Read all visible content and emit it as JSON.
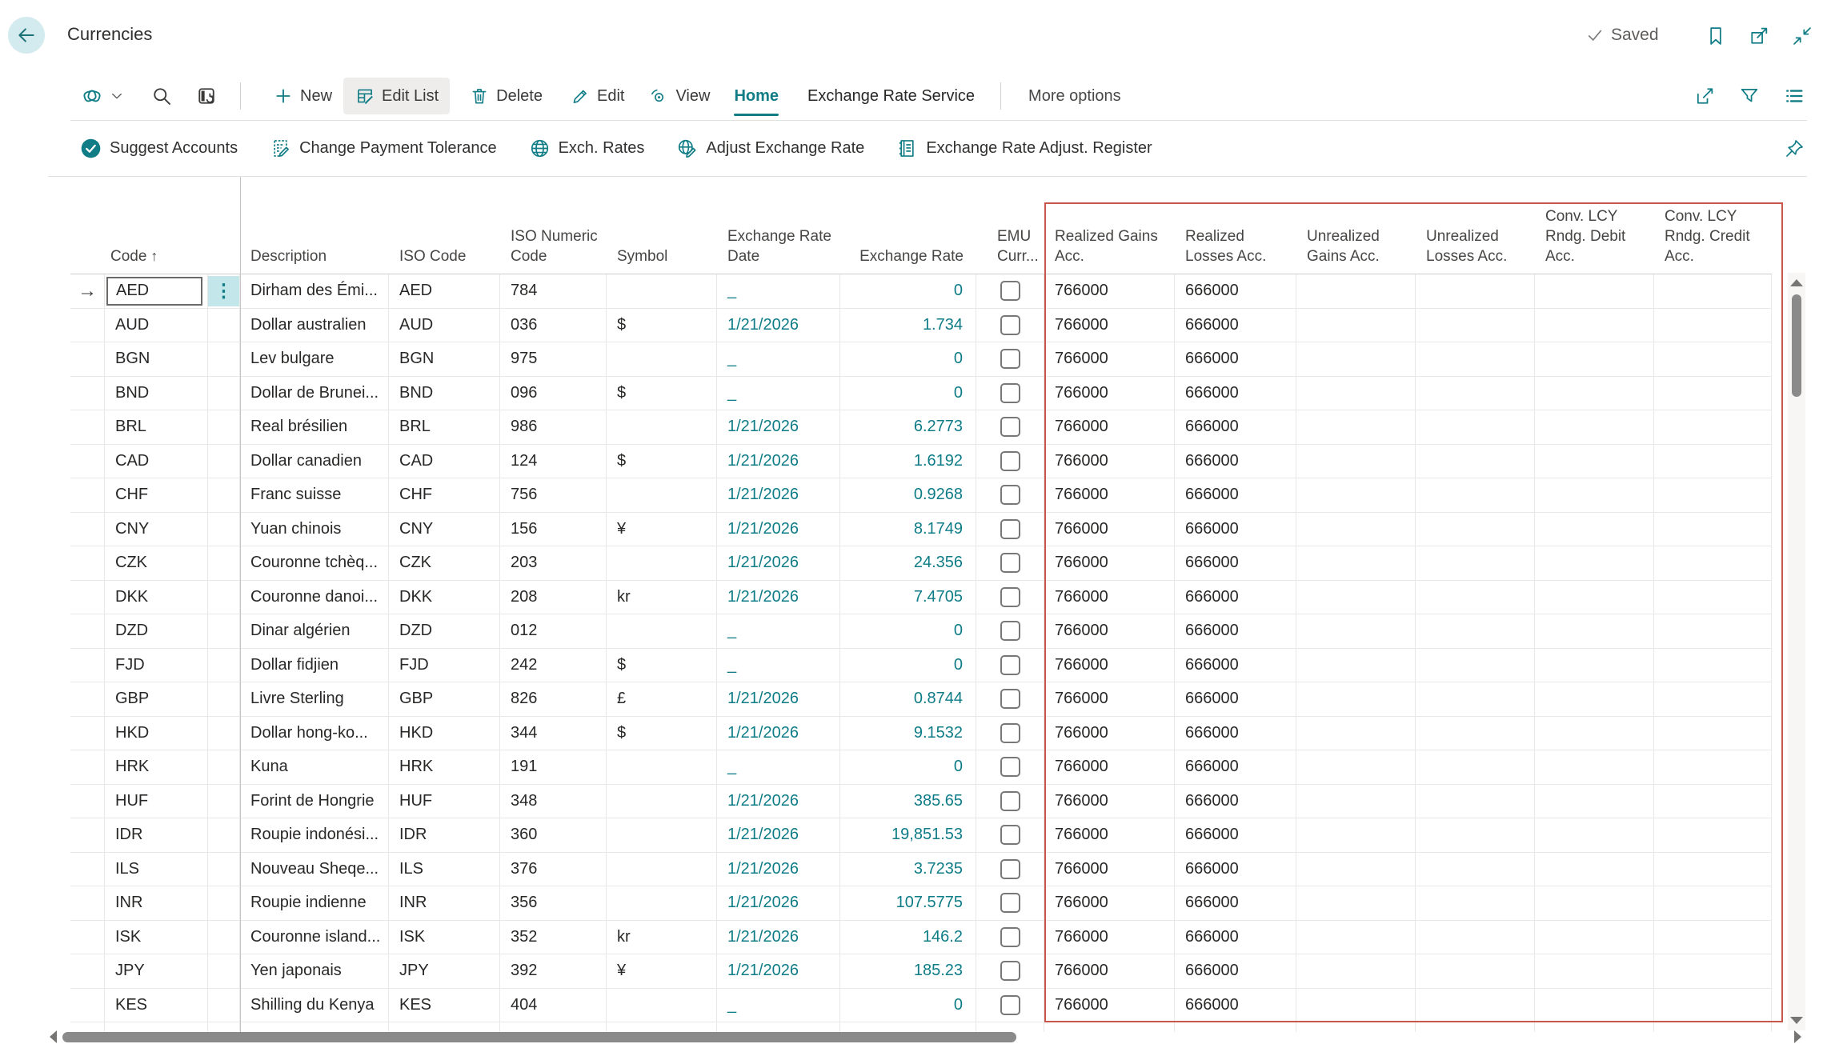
{
  "page": {
    "title": "Currencies",
    "saved": "Saved"
  },
  "ribbon": {
    "new": "New",
    "edit_list": "Edit List",
    "delete": "Delete",
    "edit": "Edit",
    "view": "View",
    "home_tab": "Home",
    "exchange_rate_service_tab": "Exchange Rate Service",
    "more_options": "More options"
  },
  "actions": {
    "suggest_accounts": "Suggest Accounts",
    "change_payment_tolerance": "Change Payment Tolerance",
    "exch_rates": "Exch. Rates",
    "adjust_exchange_rate": "Adjust Exchange Rate",
    "exchange_rate_adjust_register": "Exchange Rate Adjust. Register"
  },
  "table": {
    "columns": [
      {
        "key": "sel",
        "lines": []
      },
      {
        "key": "code",
        "lines": [
          "Code"
        ],
        "sort": "asc"
      },
      {
        "key": "opts",
        "lines": []
      },
      {
        "key": "description",
        "lines": [
          "Description"
        ]
      },
      {
        "key": "iso_code",
        "lines": [
          "ISO Code"
        ]
      },
      {
        "key": "iso_numeric",
        "lines": [
          "ISO Numeric",
          "Code"
        ]
      },
      {
        "key": "symbol",
        "lines": [
          "Symbol"
        ]
      },
      {
        "key": "rate_date",
        "lines": [
          "Exchange Rate",
          "Date"
        ]
      },
      {
        "key": "rate",
        "lines": [
          "Exchange Rate"
        ],
        "align": "right"
      },
      {
        "key": "emu",
        "lines": [
          "EMU",
          "Curr..."
        ]
      },
      {
        "key": "realized_gains",
        "lines": [
          "Realized Gains",
          "Acc."
        ]
      },
      {
        "key": "realized_losses",
        "lines": [
          "Realized",
          "Losses Acc."
        ]
      },
      {
        "key": "unrealized_gains",
        "lines": [
          "Unrealized",
          "Gains Acc."
        ]
      },
      {
        "key": "unrealized_losses",
        "lines": [
          "Unrealized",
          "Losses Acc."
        ]
      },
      {
        "key": "conv_debit",
        "lines": [
          "Conv. LCY",
          "Rndg. Debit",
          "Acc."
        ]
      },
      {
        "key": "conv_credit",
        "lines": [
          "Conv. LCY",
          "Rndg. Credit",
          "Acc."
        ]
      }
    ],
    "rows": [
      {
        "selected": true,
        "code": "AED",
        "description": "Dirham des Émi...",
        "iso_code": "AED",
        "iso_numeric": "784",
        "symbol": "",
        "rate_date": "_",
        "rate": "0",
        "emu": false,
        "realized_gains": "766000",
        "realized_losses": "666000",
        "unrealized_gains": "",
        "unrealized_losses": "",
        "conv_debit": "",
        "conv_credit": ""
      },
      {
        "code": "AUD",
        "description": "Dollar australien",
        "iso_code": "AUD",
        "iso_numeric": "036",
        "symbol": "$",
        "rate_date": "1/21/2026",
        "rate": "1.734",
        "emu": false,
        "realized_gains": "766000",
        "realized_losses": "666000",
        "unrealized_gains": "",
        "unrealized_losses": "",
        "conv_debit": "",
        "conv_credit": ""
      },
      {
        "code": "BGN",
        "description": "Lev bulgare",
        "iso_code": "BGN",
        "iso_numeric": "975",
        "symbol": "",
        "rate_date": "_",
        "rate": "0",
        "emu": false,
        "realized_gains": "766000",
        "realized_losses": "666000",
        "unrealized_gains": "",
        "unrealized_losses": "",
        "conv_debit": "",
        "conv_credit": ""
      },
      {
        "code": "BND",
        "description": "Dollar de Brunei...",
        "iso_code": "BND",
        "iso_numeric": "096",
        "symbol": "$",
        "rate_date": "_",
        "rate": "0",
        "emu": false,
        "realized_gains": "766000",
        "realized_losses": "666000",
        "unrealized_gains": "",
        "unrealized_losses": "",
        "conv_debit": "",
        "conv_credit": ""
      },
      {
        "code": "BRL",
        "description": "Real brésilien",
        "iso_code": "BRL",
        "iso_numeric": "986",
        "symbol": "",
        "rate_date": "1/21/2026",
        "rate": "6.2773",
        "emu": false,
        "realized_gains": "766000",
        "realized_losses": "666000",
        "unrealized_gains": "",
        "unrealized_losses": "",
        "conv_debit": "",
        "conv_credit": ""
      },
      {
        "code": "CAD",
        "description": "Dollar canadien",
        "iso_code": "CAD",
        "iso_numeric": "124",
        "symbol": "$",
        "rate_date": "1/21/2026",
        "rate": "1.6192",
        "emu": false,
        "realized_gains": "766000",
        "realized_losses": "666000",
        "unrealized_gains": "",
        "unrealized_losses": "",
        "conv_debit": "",
        "conv_credit": ""
      },
      {
        "code": "CHF",
        "description": "Franc suisse",
        "iso_code": "CHF",
        "iso_numeric": "756",
        "symbol": "",
        "rate_date": "1/21/2026",
        "rate": "0.9268",
        "emu": false,
        "realized_gains": "766000",
        "realized_losses": "666000",
        "unrealized_gains": "",
        "unrealized_losses": "",
        "conv_debit": "",
        "conv_credit": ""
      },
      {
        "code": "CNY",
        "description": "Yuan chinois",
        "iso_code": "CNY",
        "iso_numeric": "156",
        "symbol": "¥",
        "rate_date": "1/21/2026",
        "rate": "8.1749",
        "emu": false,
        "realized_gains": "766000",
        "realized_losses": "666000",
        "unrealized_gains": "",
        "unrealized_losses": "",
        "conv_debit": "",
        "conv_credit": ""
      },
      {
        "code": "CZK",
        "description": "Couronne tchèq...",
        "iso_code": "CZK",
        "iso_numeric": "203",
        "symbol": "",
        "rate_date": "1/21/2026",
        "rate": "24.356",
        "emu": false,
        "realized_gains": "766000",
        "realized_losses": "666000",
        "unrealized_gains": "",
        "unrealized_losses": "",
        "conv_debit": "",
        "conv_credit": ""
      },
      {
        "code": "DKK",
        "description": "Couronne danoi...",
        "iso_code": "DKK",
        "iso_numeric": "208",
        "symbol": "kr",
        "rate_date": "1/21/2026",
        "rate": "7.4705",
        "emu": false,
        "realized_gains": "766000",
        "realized_losses": "666000",
        "unrealized_gains": "",
        "unrealized_losses": "",
        "conv_debit": "",
        "conv_credit": ""
      },
      {
        "code": "DZD",
        "description": "Dinar algérien",
        "iso_code": "DZD",
        "iso_numeric": "012",
        "symbol": "",
        "rate_date": "_",
        "rate": "0",
        "emu": false,
        "realized_gains": "766000",
        "realized_losses": "666000",
        "unrealized_gains": "",
        "unrealized_losses": "",
        "conv_debit": "",
        "conv_credit": ""
      },
      {
        "code": "FJD",
        "description": "Dollar fidjien",
        "iso_code": "FJD",
        "iso_numeric": "242",
        "symbol": "$",
        "rate_date": "_",
        "rate": "0",
        "emu": false,
        "realized_gains": "766000",
        "realized_losses": "666000",
        "unrealized_gains": "",
        "unrealized_losses": "",
        "conv_debit": "",
        "conv_credit": ""
      },
      {
        "code": "GBP",
        "description": "Livre Sterling",
        "iso_code": "GBP",
        "iso_numeric": "826",
        "symbol": "£",
        "rate_date": "1/21/2026",
        "rate": "0.8744",
        "emu": false,
        "realized_gains": "766000",
        "realized_losses": "666000",
        "unrealized_gains": "",
        "unrealized_losses": "",
        "conv_debit": "",
        "conv_credit": ""
      },
      {
        "code": "HKD",
        "description": "Dollar hong-ko...",
        "iso_code": "HKD",
        "iso_numeric": "344",
        "symbol": "$",
        "rate_date": "1/21/2026",
        "rate": "9.1532",
        "emu": false,
        "realized_gains": "766000",
        "realized_losses": "666000",
        "unrealized_gains": "",
        "unrealized_losses": "",
        "conv_debit": "",
        "conv_credit": ""
      },
      {
        "code": "HRK",
        "description": "Kuna",
        "iso_code": "HRK",
        "iso_numeric": "191",
        "symbol": "",
        "rate_date": "_",
        "rate": "0",
        "emu": false,
        "realized_gains": "766000",
        "realized_losses": "666000",
        "unrealized_gains": "",
        "unrealized_losses": "",
        "conv_debit": "",
        "conv_credit": ""
      },
      {
        "code": "HUF",
        "description": "Forint de Hongrie",
        "iso_code": "HUF",
        "iso_numeric": "348",
        "symbol": "",
        "rate_date": "1/21/2026",
        "rate": "385.65",
        "emu": false,
        "realized_gains": "766000",
        "realized_losses": "666000",
        "unrealized_gains": "",
        "unrealized_losses": "",
        "conv_debit": "",
        "conv_credit": ""
      },
      {
        "code": "IDR",
        "description": "Roupie indonési...",
        "iso_code": "IDR",
        "iso_numeric": "360",
        "symbol": "",
        "rate_date": "1/21/2026",
        "rate": "19,851.53",
        "emu": false,
        "realized_gains": "766000",
        "realized_losses": "666000",
        "unrealized_gains": "",
        "unrealized_losses": "",
        "conv_debit": "",
        "conv_credit": ""
      },
      {
        "code": "ILS",
        "description": "Nouveau Sheqe...",
        "iso_code": "ILS",
        "iso_numeric": "376",
        "symbol": "",
        "rate_date": "1/21/2026",
        "rate": "3.7235",
        "emu": false,
        "realized_gains": "766000",
        "realized_losses": "666000",
        "unrealized_gains": "",
        "unrealized_losses": "",
        "conv_debit": "",
        "conv_credit": ""
      },
      {
        "code": "INR",
        "description": "Roupie indienne",
        "iso_code": "INR",
        "iso_numeric": "356",
        "symbol": "",
        "rate_date": "1/21/2026",
        "rate": "107.5775",
        "emu": false,
        "realized_gains": "766000",
        "realized_losses": "666000",
        "unrealized_gains": "",
        "unrealized_losses": "",
        "conv_debit": "",
        "conv_credit": ""
      },
      {
        "code": "ISK",
        "description": "Couronne island...",
        "iso_code": "ISK",
        "iso_numeric": "352",
        "symbol": "kr",
        "rate_date": "1/21/2026",
        "rate": "146.2",
        "emu": false,
        "realized_gains": "766000",
        "realized_losses": "666000",
        "unrealized_gains": "",
        "unrealized_losses": "",
        "conv_debit": "",
        "conv_credit": ""
      },
      {
        "code": "JPY",
        "description": "Yen japonais",
        "iso_code": "JPY",
        "iso_numeric": "392",
        "symbol": "¥",
        "rate_date": "1/21/2026",
        "rate": "185.23",
        "emu": false,
        "realized_gains": "766000",
        "realized_losses": "666000",
        "unrealized_gains": "",
        "unrealized_losses": "",
        "conv_debit": "",
        "conv_credit": ""
      },
      {
        "code": "KES",
        "description": "Shilling du Kenya",
        "iso_code": "KES",
        "iso_numeric": "404",
        "symbol": "",
        "rate_date": "_",
        "rate": "0",
        "emu": false,
        "realized_gains": "766000",
        "realized_losses": "666000",
        "unrealized_gains": "",
        "unrealized_losses": "",
        "conv_debit": "",
        "conv_credit": ""
      }
    ]
  },
  "colors": {
    "accent": "#107c85",
    "accent_soft": "#d3ebee",
    "link": "#0e7c87",
    "red_box": "#c9564a",
    "grid_line": "#e9e8e7",
    "freeze_line": "#c7c5c3",
    "scrollbar": "#8a8a8a",
    "options_bg": "#c3e6ea",
    "header_text": "#484644",
    "text": "#292827"
  }
}
